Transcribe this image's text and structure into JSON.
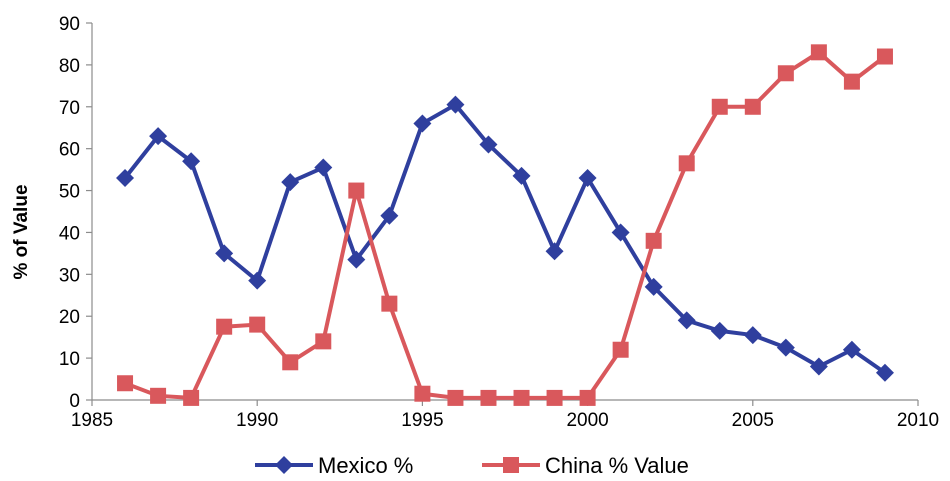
{
  "chart_data": {
    "type": "line",
    "title": "",
    "xlabel": "",
    "ylabel": "% of Value",
    "xlim": [
      1985,
      2010
    ],
    "ylim": [
      0,
      90
    ],
    "x_ticks": [
      1985,
      1990,
      1995,
      2000,
      2005,
      2010
    ],
    "y_ticks": [
      0,
      10,
      20,
      30,
      40,
      50,
      60,
      70,
      80,
      90
    ],
    "grid": false,
    "legend": "bottom",
    "series": [
      {
        "name": "Mexico %",
        "color": "#2F3F9E",
        "marker": "diamond",
        "x": [
          1986,
          1987,
          1988,
          1989,
          1990,
          1991,
          1992,
          1993,
          1994,
          1995,
          1996,
          1997,
          1998,
          1999,
          2000,
          2001,
          2002,
          2003,
          2004,
          2005,
          2006,
          2007,
          2008,
          2009
        ],
        "y": [
          53,
          63,
          57,
          35,
          28.5,
          52,
          55.5,
          33.5,
          44,
          66,
          70.5,
          61,
          53.5,
          35.5,
          53,
          40,
          27,
          19,
          16.5,
          15.5,
          12.5,
          8,
          12,
          6.5
        ]
      },
      {
        "name": "China % Value",
        "color": "#D9585C",
        "marker": "square",
        "x": [
          1986,
          1987,
          1988,
          1989,
          1990,
          1991,
          1992,
          1993,
          1994,
          1995,
          1996,
          1997,
          1998,
          1999,
          2000,
          2001,
          2002,
          2003,
          2004,
          2005,
          2006,
          2007,
          2008,
          2009
        ],
        "y": [
          4,
          1,
          0.5,
          17.5,
          18,
          9,
          14,
          50,
          23,
          1.5,
          0.5,
          0.5,
          0.5,
          0.5,
          0.5,
          12,
          38,
          56.5,
          70,
          70,
          78,
          83,
          76,
          82
        ]
      }
    ]
  }
}
